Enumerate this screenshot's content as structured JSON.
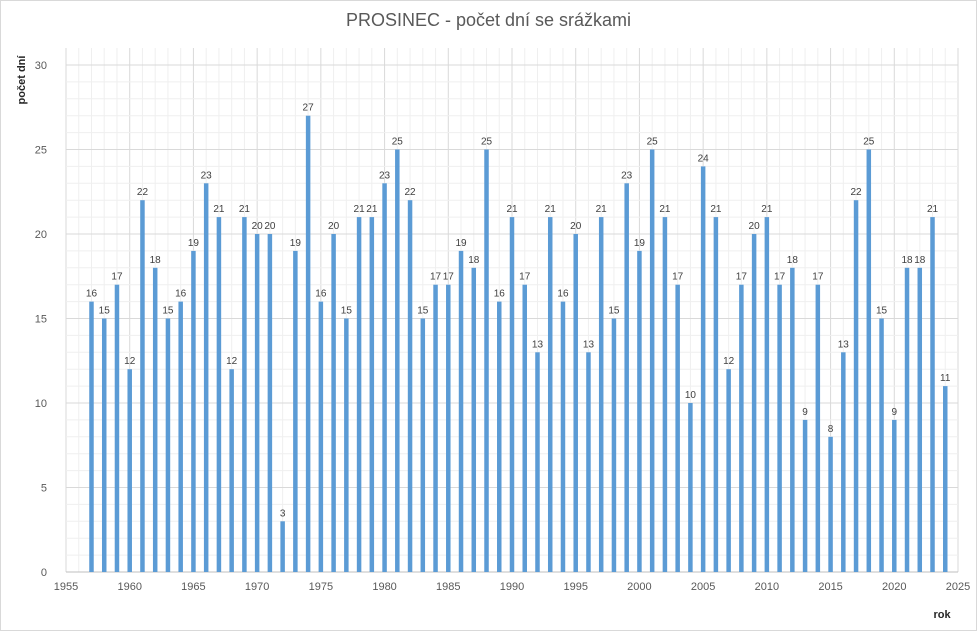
{
  "chart_data": {
    "type": "bar",
    "title": "PROSINEC - počet dní se srážkami",
    "xlabel": "rok",
    "ylabel": "počet dní",
    "xlim": [
      1955,
      2025
    ],
    "ylim": [
      0,
      30
    ],
    "x_ticks": [
      1955,
      1960,
      1965,
      1970,
      1975,
      1980,
      1985,
      1990,
      1995,
      2000,
      2005,
      2010,
      2015,
      2020,
      2025
    ],
    "y_ticks": [
      0,
      5,
      10,
      15,
      20,
      25,
      30
    ],
    "grid": true,
    "bar_color": "#5b9bd5",
    "x": [
      1957,
      1958,
      1959,
      1960,
      1961,
      1962,
      1963,
      1964,
      1965,
      1966,
      1967,
      1968,
      1969,
      1970,
      1971,
      1972,
      1973,
      1974,
      1975,
      1976,
      1977,
      1978,
      1979,
      1980,
      1981,
      1982,
      1983,
      1984,
      1985,
      1986,
      1987,
      1988,
      1989,
      1990,
      1991,
      1992,
      1993,
      1994,
      1995,
      1996,
      1997,
      1998,
      1999,
      2000,
      2001,
      2002,
      2003,
      2004,
      2005,
      2006,
      2007,
      2008,
      2009,
      2010,
      2011,
      2012,
      2013,
      2014,
      2015,
      2016,
      2017,
      2018,
      2019,
      2020,
      2021,
      2022,
      2023,
      2024
    ],
    "values": [
      16,
      15,
      17,
      12,
      22,
      18,
      15,
      16,
      19,
      23,
      21,
      12,
      21,
      20,
      20,
      3,
      19,
      27,
      16,
      20,
      15,
      21,
      21,
      23,
      25,
      22,
      15,
      17,
      17,
      19,
      18,
      25,
      16,
      21,
      17,
      13,
      21,
      16,
      20,
      13,
      21,
      15,
      23,
      19,
      25,
      21,
      17,
      10,
      24,
      21,
      12,
      17,
      20,
      21,
      17,
      18,
      9,
      17,
      8,
      13,
      22,
      25,
      15,
      9,
      18,
      18,
      21,
      11
    ]
  }
}
